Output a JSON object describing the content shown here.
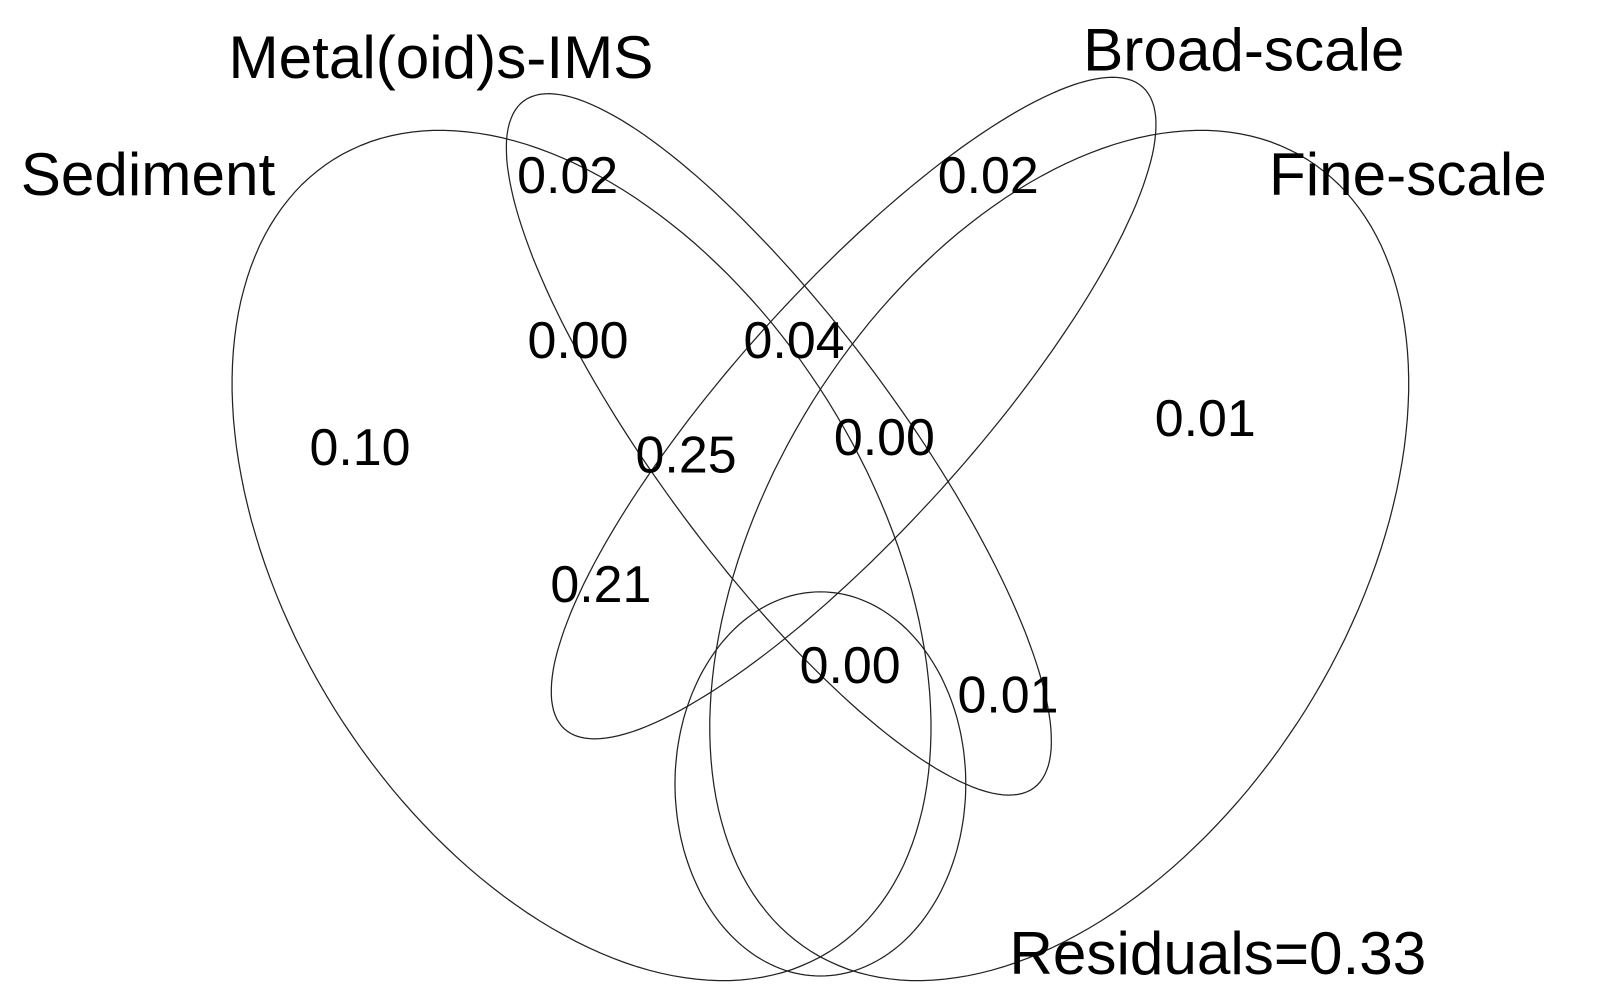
{
  "sets": [
    "Sediment",
    "Metal(oid)s-IMS",
    "Broad-scale",
    "Fine-scale"
  ],
  "residuals": "Residuals=0.33",
  "regions": {
    "sediment_only": "0.10",
    "metal_only": "0.02",
    "broad_only": "0.02",
    "fine_only": "0.01",
    "r1": "0.00",
    "r2": "0.04",
    "r3": "0.25",
    "r4": "0.00",
    "r5": "0.21",
    "r6": "0.00",
    "r7": "0.01"
  }
}
